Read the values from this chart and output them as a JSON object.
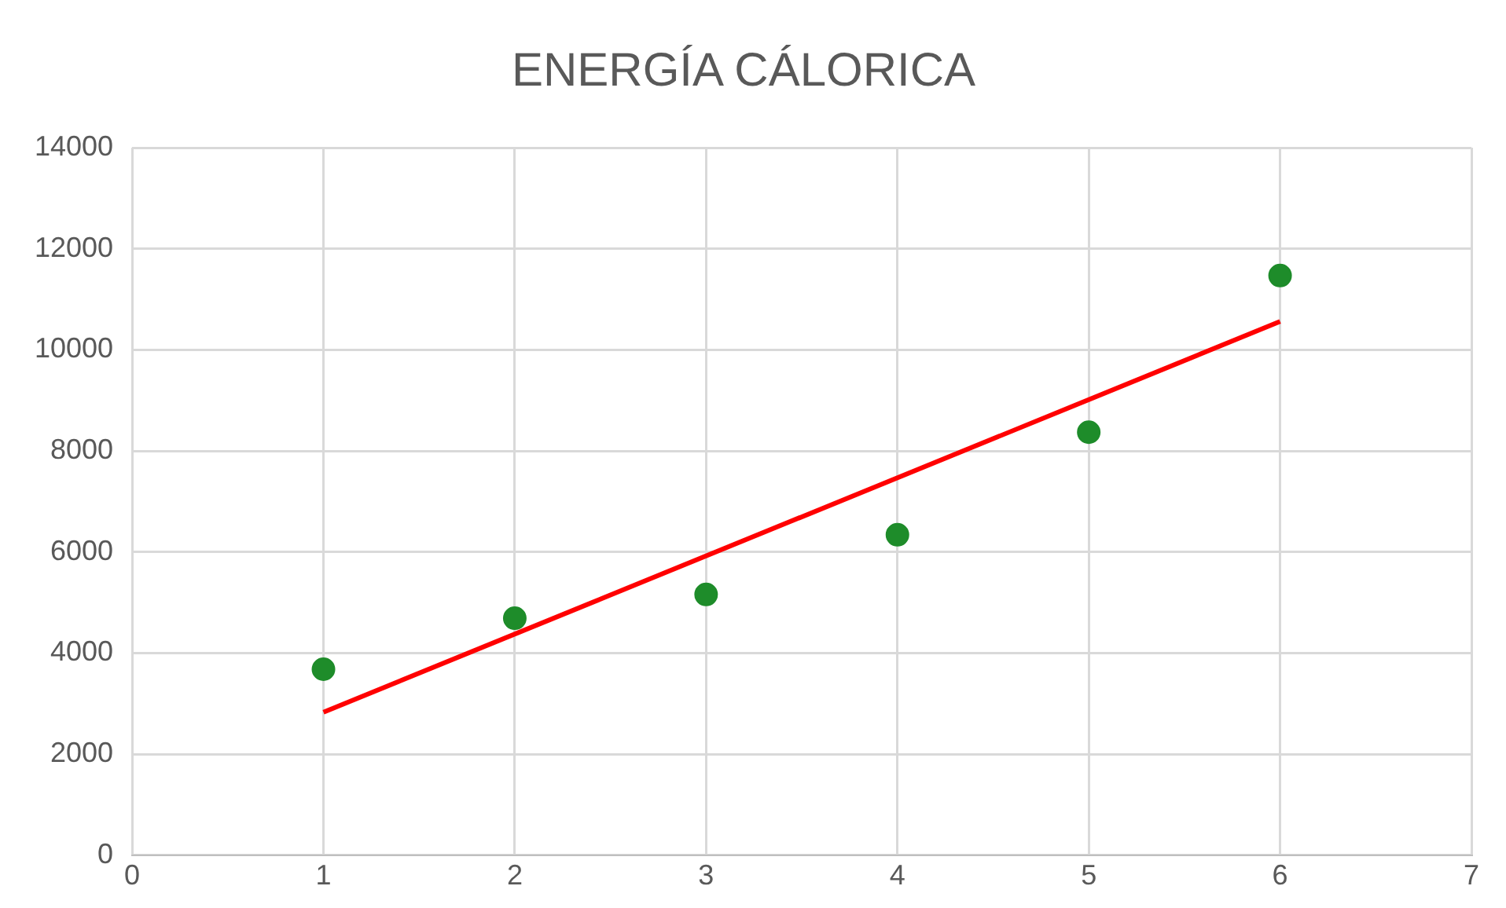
{
  "chart_data": {
    "type": "scatter",
    "title": "ENERGÍA CÁLORICA",
    "x": [
      1,
      2,
      3,
      4,
      5,
      6
    ],
    "series": [
      {
        "type": "scatter",
        "color": "#1e8c2a",
        "marker": "circle",
        "values": [
          3680,
          4690,
          5160,
          6340,
          8370,
          11470
        ]
      },
      {
        "type": "line",
        "color": "#ff0000",
        "marker": "none",
        "line_style": "solid",
        "x": [
          1,
          6
        ],
        "values": [
          2830,
          10560
        ]
      }
    ],
    "xlim": [
      0,
      7
    ],
    "xticks": [
      0,
      1,
      2,
      3,
      4,
      5,
      6,
      7
    ],
    "ylim": [
      0,
      14000
    ],
    "yticks": [
      0,
      2000,
      4000,
      6000,
      8000,
      10000,
      12000,
      14000
    ],
    "grid": true,
    "legend": false
  }
}
